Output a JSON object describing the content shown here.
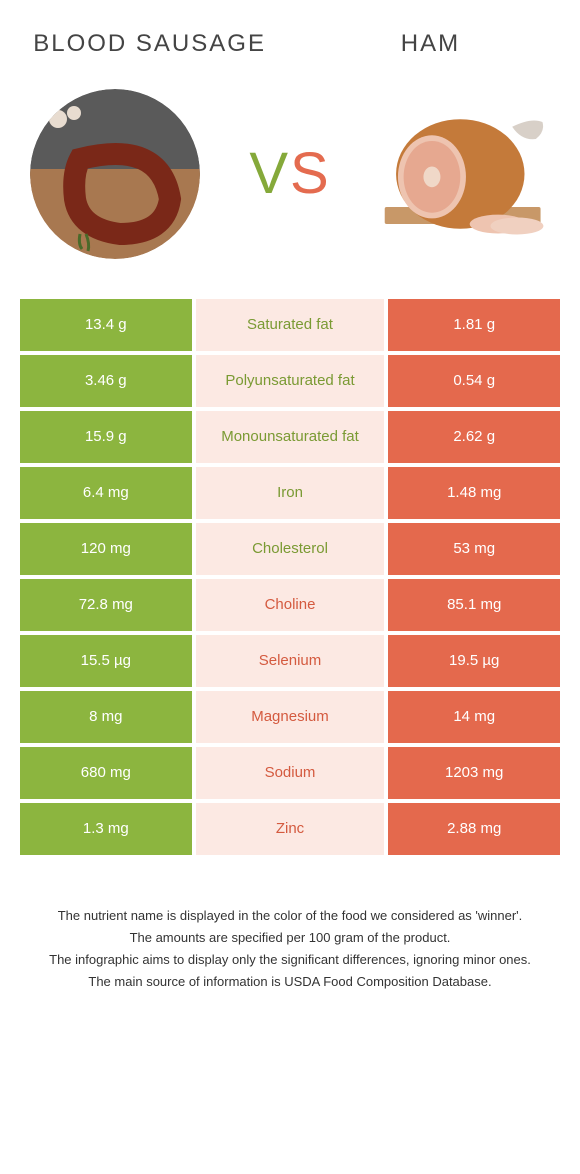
{
  "colors": {
    "left": "#8cb53f",
    "right": "#e4694d",
    "mid_bg": "#fce9e3",
    "label_left": "#7a9a33",
    "label_right": "#d45a3f"
  },
  "food_left": {
    "title": "Blood Sausage"
  },
  "food_right": {
    "title": "Ham"
  },
  "vs": {
    "v": "V",
    "s": "S"
  },
  "rows": [
    {
      "left": "13.4 g",
      "label": "Saturated fat",
      "right": "1.81 g",
      "winner": "left"
    },
    {
      "left": "3.46 g",
      "label": "Polyunsaturated fat",
      "right": "0.54 g",
      "winner": "left"
    },
    {
      "left": "15.9 g",
      "label": "Monounsaturated fat",
      "right": "2.62 g",
      "winner": "left"
    },
    {
      "left": "6.4 mg",
      "label": "Iron",
      "right": "1.48 mg",
      "winner": "left"
    },
    {
      "left": "120 mg",
      "label": "Cholesterol",
      "right": "53 mg",
      "winner": "left"
    },
    {
      "left": "72.8 mg",
      "label": "Choline",
      "right": "85.1 mg",
      "winner": "right"
    },
    {
      "left": "15.5 µg",
      "label": "Selenium",
      "right": "19.5 µg",
      "winner": "right"
    },
    {
      "left": "8 mg",
      "label": "Magnesium",
      "right": "14 mg",
      "winner": "right"
    },
    {
      "left": "680 mg",
      "label": "Sodium",
      "right": "1203 mg",
      "winner": "right"
    },
    {
      "left": "1.3 mg",
      "label": "Zinc",
      "right": "2.88 mg",
      "winner": "right"
    }
  ],
  "footer": {
    "line1": "The nutrient name is displayed in the color of the food we considered as 'winner'.",
    "line2": "The amounts are specified per 100 gram of the product.",
    "line3": "The infographic aims to display only the significant differences, ignoring minor ones.",
    "line4": "The main source of information is USDA Food Composition Database."
  }
}
